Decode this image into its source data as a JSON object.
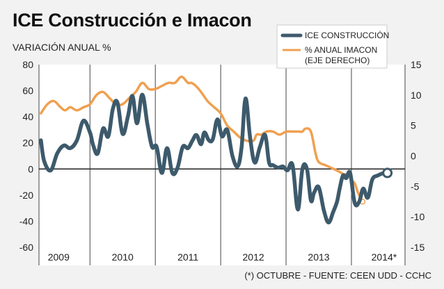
{
  "title": "ICE Construcción e Imacon",
  "subtitle": "VARIACIÓN ANUAL %",
  "source": "(*) OCTUBRE - FUENTE: CEEN UDD - CCHC",
  "chart_data": {
    "type": "line",
    "x_categories": [
      "2009",
      "2010",
      "2011",
      "2012",
      "2013",
      "2014*"
    ],
    "yleft_ticks": [
      "80",
      "60",
      "40",
      "20",
      "0",
      "-20",
      "-40",
      "-60"
    ],
    "yright_ticks": [
      "15",
      "10",
      "5",
      "0",
      "-5",
      "-10",
      "-15"
    ],
    "yleft_lim": [
      -60,
      80
    ],
    "yright_lim": [
      -15,
      15
    ],
    "legend_placement": "top-right",
    "series": [
      {
        "name": "ICE CONSTRUCCIÓN",
        "axis": "left",
        "color": "#3d5a6c",
        "x": [
          2008.75,
          2008.8,
          2008.9,
          2009.0,
          2009.1,
          2009.2,
          2009.3,
          2009.4,
          2009.5,
          2009.55,
          2009.62,
          2009.7,
          2009.78,
          2009.85,
          2009.92,
          2010.0,
          2010.08,
          2010.15,
          2010.22,
          2010.3,
          2010.38,
          2010.45,
          2010.52,
          2010.6,
          2010.68,
          2010.76,
          2010.84,
          2010.92,
          2011.0,
          2011.07,
          2011.13,
          2011.2,
          2011.25,
          2011.32,
          2011.38,
          2011.45,
          2011.52,
          2011.6,
          2011.68,
          2011.76,
          2011.82,
          2011.88,
          2011.95,
          2012.02,
          2012.1,
          2012.18,
          2012.24,
          2012.3,
          2012.38,
          2012.45,
          2012.52,
          2012.6,
          2012.68,
          2012.75,
          2012.82,
          2012.88,
          2012.93,
          2013.0,
          2013.08,
          2013.15,
          2013.22,
          2013.28,
          2013.32,
          2013.37,
          2013.42,
          2013.48,
          2013.55,
          2013.62,
          2013.68,
          2013.75,
          2013.82,
          2013.9,
          2014.0,
          2014.05
        ],
        "values": [
          22,
          6,
          -1,
          12,
          18,
          16,
          22,
          37,
          28,
          18,
          12,
          31,
          25,
          46,
          51,
          27,
          40,
          56,
          35,
          57,
          34,
          17,
          17,
          -3,
          16,
          -3,
          1,
          17,
          16,
          22,
          26,
          19,
          28,
          22,
          23,
          38,
          25,
          30,
          10,
          2,
          17,
          54,
          24,
          5,
          17,
          26,
          5,
          3,
          1,
          2,
          -1,
          3,
          -31,
          0,
          0,
          -24,
          -18,
          -14,
          -32,
          -41,
          -33,
          -25,
          -15,
          -5,
          -7,
          -3,
          -26,
          -25,
          -15,
          -22,
          -8,
          -5,
          -3,
          -3
        ]
      },
      {
        "name": "% ANUAL IMACON (EJE DERECHO)",
        "axis": "right",
        "color": "#f0a050",
        "x": [
          2008.75,
          2008.85,
          2008.95,
          2009.05,
          2009.12,
          2009.2,
          2009.3,
          2009.4,
          2009.5,
          2009.6,
          2009.7,
          2009.8,
          2009.9,
          2010.0,
          2010.1,
          2010.2,
          2010.3,
          2010.4,
          2010.5,
          2010.6,
          2010.7,
          2010.8,
          2010.9,
          2011.0,
          2011.05,
          2011.12,
          2011.2,
          2011.3,
          2011.4,
          2011.5,
          2011.6,
          2011.7,
          2011.8,
          2011.9,
          2012.0,
          2012.05,
          2012.12,
          2012.2,
          2012.3,
          2012.4,
          2012.5,
          2012.6,
          2012.7,
          2012.75,
          2012.8,
          2012.88,
          2012.95,
          2013.0,
          2013.1,
          2013.2,
          2013.3,
          2013.38,
          2013.45,
          2013.5,
          2013.55,
          2013.6,
          2013.67
        ],
        "values": [
          7,
          8.5,
          9,
          8,
          7.5,
          8,
          7.5,
          8,
          8.5,
          10,
          10.5,
          9.5,
          8.5,
          8.5,
          9.5,
          10.5,
          12,
          11,
          11,
          11.5,
          12,
          12,
          13,
          12,
          12,
          11.5,
          10.5,
          9,
          8,
          7,
          5,
          4,
          3,
          2.5,
          2.5,
          3.5,
          3.5,
          4,
          4,
          3.5,
          4,
          4,
          4,
          4,
          4.5,
          4,
          0.5,
          -1,
          -1.5,
          -2,
          -2.5,
          -3,
          -3,
          -4,
          -4.5,
          -6,
          -7.5
        ]
      }
    ]
  }
}
